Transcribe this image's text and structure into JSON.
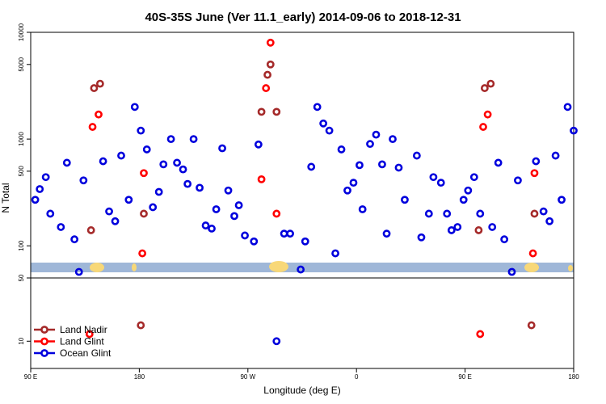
{
  "chart_data": {
    "type": "scatter",
    "title": "40S-35S June (Ver 11.1_early)   2014-09-06 to 2018-12-31",
    "xlabel": "Longitude (deg E)",
    "ylabel": "N Total",
    "y_scale": "log",
    "xlim": [
      90,
      450
    ],
    "ylim": [
      50,
      10000
    ],
    "lower_ylim": [
      5,
      50
    ],
    "x_ticks": [
      {
        "value": 90,
        "label": "90 E"
      },
      {
        "value": 162,
        "label": "180"
      },
      {
        "value": 234,
        "label": "90 W"
      },
      {
        "value": 306,
        "label": "0"
      },
      {
        "value": 378,
        "label": "90 E"
      },
      {
        "value": 450,
        "label": "180"
      }
    ],
    "y_ticks": [
      {
        "value": 10000,
        "label": "10000"
      },
      {
        "value": 5000,
        "label": "5000"
      },
      {
        "value": 1000,
        "label": "1000"
      },
      {
        "value": 500,
        "label": "500"
      },
      {
        "value": 100,
        "label": "100"
      },
      {
        "value": 50,
        "label": "50"
      }
    ],
    "lower_y_ticks": [
      {
        "value": 10,
        "label": "10"
      }
    ],
    "grid": false,
    "legend_position": "bottom-left",
    "series": [
      {
        "name": "Land Nadir",
        "color": "#a52a2a",
        "points": [
          [
            130,
            140
          ],
          [
            132,
            3000
          ],
          [
            136,
            3300
          ],
          [
            165,
            200
          ],
          [
            243,
            1800
          ],
          [
            247,
            4000
          ],
          [
            249,
            5000
          ],
          [
            253,
            1800
          ],
          [
            387,
            140
          ],
          [
            391,
            3000
          ],
          [
            395,
            3300
          ],
          [
            424,
            200
          ]
        ],
        "lower_points": [
          [
            163,
            15
          ],
          [
            422,
            15
          ]
        ]
      },
      {
        "name": "Land Glint",
        "color": "#ff0000",
        "points": [
          [
            131,
            1300
          ],
          [
            135,
            1700
          ],
          [
            164,
            85
          ],
          [
            165,
            480
          ],
          [
            243,
            420
          ],
          [
            246,
            3000
          ],
          [
            249,
            8000
          ],
          [
            253,
            200
          ],
          [
            390,
            1300
          ],
          [
            393,
            1700
          ],
          [
            423,
            85
          ],
          [
            424,
            480
          ]
        ],
        "lower_points": [
          [
            129,
            12
          ],
          [
            388,
            12
          ]
        ]
      },
      {
        "name": "Ocean Glint",
        "color": "#0000dd",
        "points": [
          [
            93,
            270
          ],
          [
            96,
            340
          ],
          [
            100,
            440
          ],
          [
            103,
            200
          ],
          [
            110,
            150
          ],
          [
            114,
            600
          ],
          [
            119,
            115
          ],
          [
            122,
            57
          ],
          [
            125,
            410
          ],
          [
            138,
            620
          ],
          [
            142,
            210
          ],
          [
            146,
            170
          ],
          [
            150,
            700
          ],
          [
            155,
            270
          ],
          [
            159,
            2000
          ],
          [
            163,
            1200
          ],
          [
            167,
            800
          ],
          [
            171,
            230
          ],
          [
            175,
            320
          ],
          [
            178,
            580
          ],
          [
            183,
            1000
          ],
          [
            187,
            600
          ],
          [
            191,
            520
          ],
          [
            194,
            380
          ],
          [
            198,
            1000
          ],
          [
            202,
            350
          ],
          [
            206,
            155
          ],
          [
            210,
            145
          ],
          [
            213,
            220
          ],
          [
            217,
            820
          ],
          [
            221,
            330
          ],
          [
            225,
            190
          ],
          [
            228,
            240
          ],
          [
            232,
            125
          ],
          [
            238,
            110
          ],
          [
            241,
            890
          ],
          [
            258,
            130
          ],
          [
            262,
            130
          ],
          [
            269,
            60
          ],
          [
            272,
            110
          ],
          [
            276,
            550
          ],
          [
            280,
            2000
          ],
          [
            284,
            1400
          ],
          [
            288,
            1200
          ],
          [
            292,
            85
          ],
          [
            296,
            800
          ],
          [
            300,
            330
          ],
          [
            304,
            390
          ],
          [
            308,
            570
          ],
          [
            310,
            220
          ],
          [
            315,
            900
          ],
          [
            319,
            1100
          ],
          [
            323,
            580
          ],
          [
            326,
            130
          ],
          [
            330,
            1000
          ],
          [
            334,
            540
          ],
          [
            338,
            270
          ],
          [
            346,
            700
          ],
          [
            349,
            120
          ],
          [
            354,
            200
          ],
          [
            357,
            440
          ],
          [
            362,
            390
          ],
          [
            366,
            200
          ],
          [
            369,
            140
          ],
          [
            373,
            150
          ],
          [
            377,
            270
          ],
          [
            380,
            330
          ],
          [
            384,
            440
          ],
          [
            388,
            200
          ],
          [
            396,
            150
          ],
          [
            400,
            600
          ],
          [
            404,
            115
          ],
          [
            409,
            57
          ],
          [
            413,
            410
          ],
          [
            425,
            620
          ],
          [
            430,
            210
          ],
          [
            434,
            170
          ],
          [
            438,
            700
          ],
          [
            442,
            270
          ],
          [
            446,
            2000
          ],
          [
            450,
            1200
          ]
        ],
        "lower_points": [
          [
            253,
            10
          ]
        ]
      }
    ]
  }
}
